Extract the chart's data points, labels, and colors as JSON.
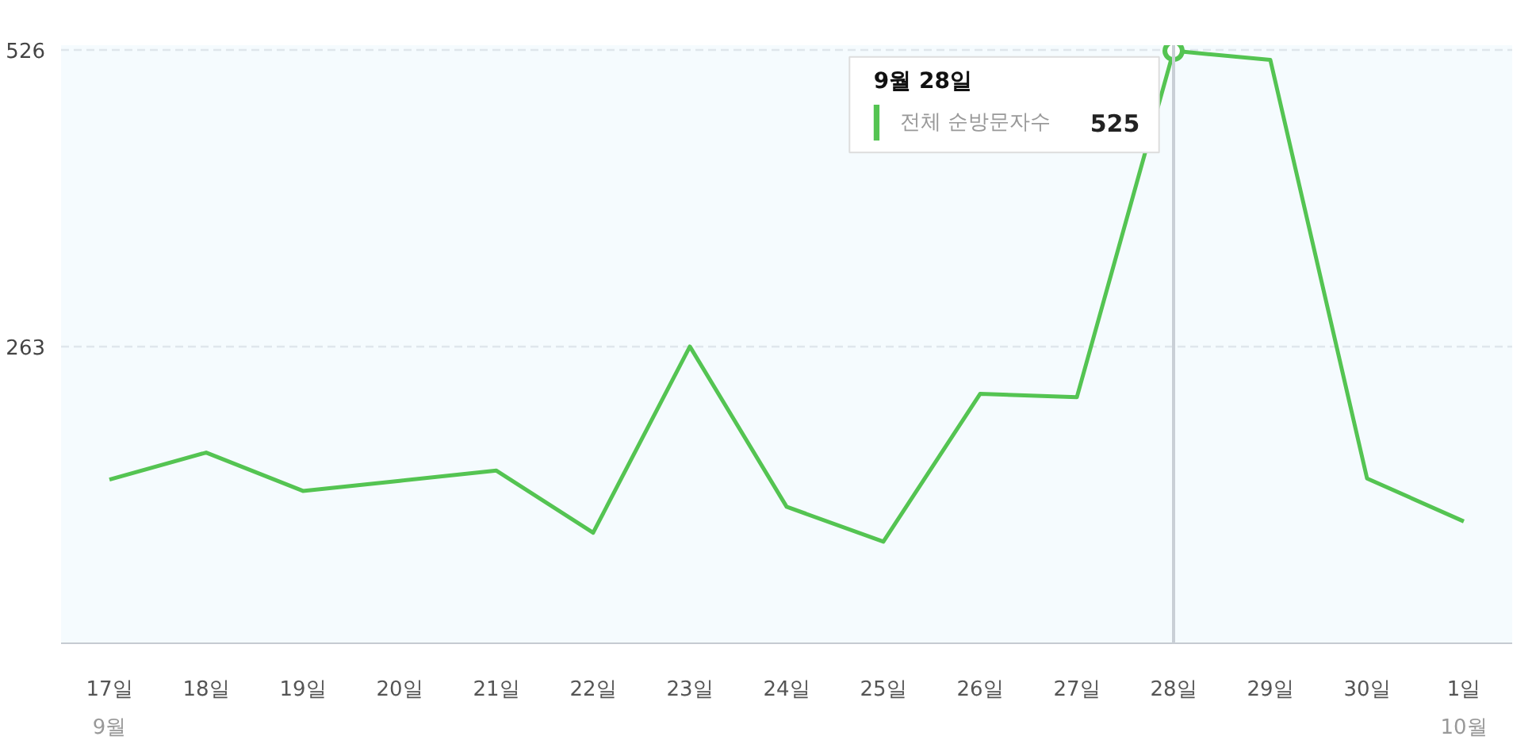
{
  "chart_data": {
    "type": "line",
    "categories": [
      "17일",
      "18일",
      "19일",
      "20일",
      "21일",
      "22일",
      "23일",
      "24일",
      "25일",
      "26일",
      "27일",
      "28일",
      "29일",
      "30일",
      "1일"
    ],
    "series": [
      {
        "name": "전체 순방문자수",
        "color": "#54c452",
        "values": [
          145,
          169,
          135,
          144,
          153,
          98,
          263,
          121,
          90,
          221,
          218,
          525,
          517,
          146,
          108
        ],
        "value_labels": [
          null,
          null,
          null,
          null,
          null,
          null,
          null,
          null,
          null,
          null,
          null,
          "525",
          null,
          null,
          null
        ]
      }
    ],
    "ylim": [
      0,
      530
    ],
    "yticks": [
      263,
      526
    ],
    "annotations": [
      "9월",
      "10월",
      "9월 28일"
    ],
    "ref_lines": [
      {
        "axis": "x",
        "value": "28일",
        "color": "#c9cfd6"
      }
    ],
    "grid": "y",
    "line_style": "solid"
  }
}
